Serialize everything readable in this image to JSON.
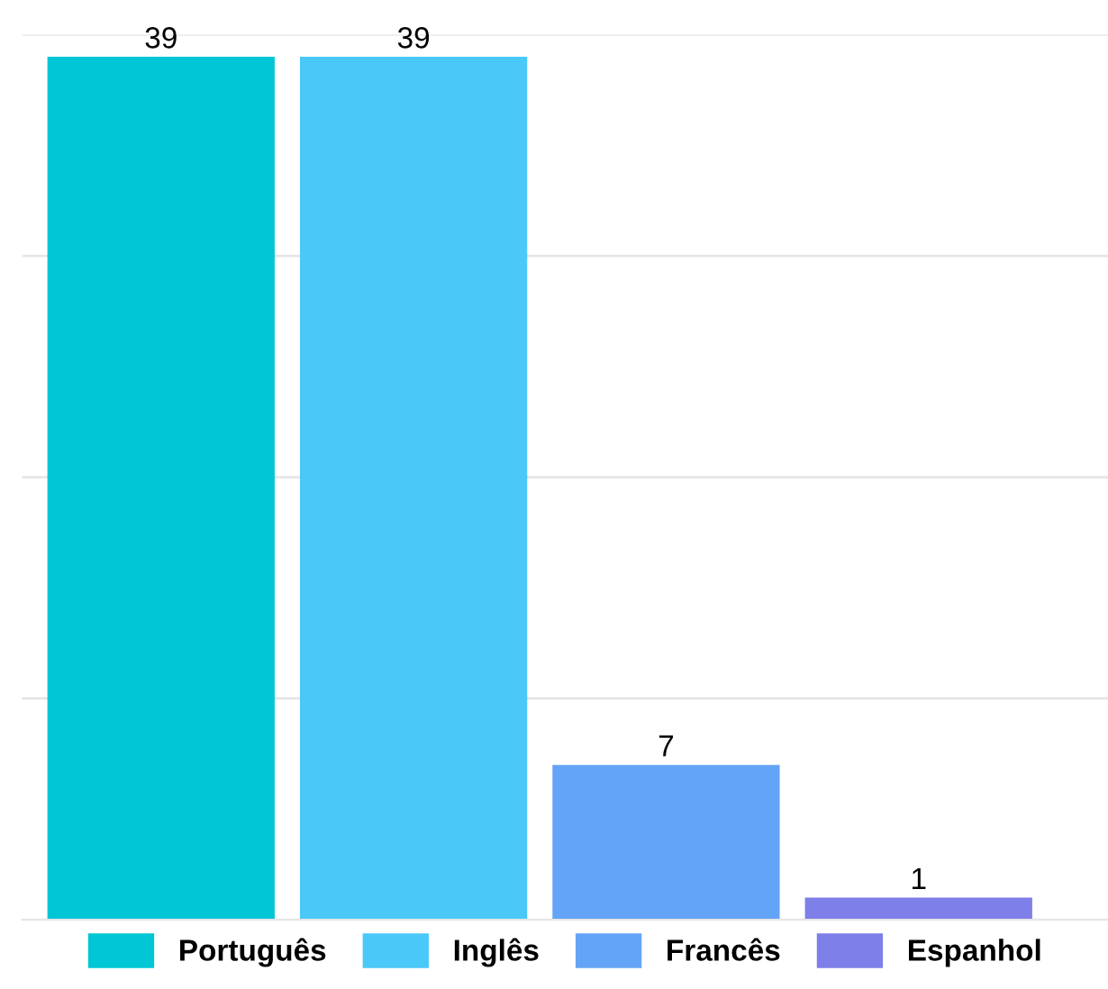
{
  "chart_data": {
    "type": "bar",
    "categories": [
      null,
      null,
      null,
      null
    ],
    "series": [
      {
        "name": "Português",
        "color": "#00c6d6",
        "values": [
          39,
          null,
          null,
          null
        ]
      },
      {
        "name": "Inglês",
        "color": "#4ac8f8",
        "values": [
          null,
          39,
          null,
          null
        ]
      },
      {
        "name": "Francês",
        "color": "#64a4f6",
        "values": [
          null,
          null,
          7,
          null
        ]
      },
      {
        "name": "Espanhol",
        "color": "#7e7fe8",
        "values": [
          null,
          null,
          null,
          1
        ]
      }
    ],
    "ylim": [
      0,
      40
    ],
    "yticks": [
      {
        "value": 0,
        "label": null
      },
      {
        "value": 10,
        "label": null
      },
      {
        "value": 20,
        "label": null
      },
      {
        "value": 30,
        "label": null
      },
      {
        "value": 40,
        "label": null
      }
    ],
    "grid": "y",
    "data_labels": true,
    "legend": "bottom",
    "stacked": true
  }
}
